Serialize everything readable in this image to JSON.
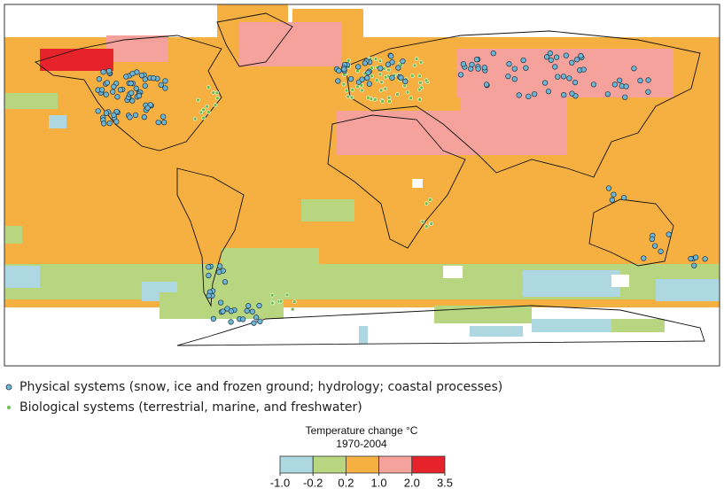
{
  "legend": {
    "items": [
      {
        "label": "Physical systems (snow, ice and frozen ground; hydrology; coastal processes)",
        "color": "#6cb6d4"
      },
      {
        "label": "Biological systems (terrestrial, marine, and freshwater)",
        "color": "#6cc04a"
      }
    ]
  },
  "colorbar": {
    "title": "Temperature change °C",
    "subtitle": "1970-2004",
    "ticks": [
      {
        "value": -1,
        "label": "-1.0"
      },
      -0.2,
      0.2,
      {
        "value": 1,
        "label": "1.0"
      },
      {
        "value": 2,
        "label": "2.0"
      },
      3.5
    ],
    "colors": [
      "#add8e2",
      "#b8d57f",
      "#f6b042",
      "#f4a29b",
      "#e6232a"
    ]
  }
}
